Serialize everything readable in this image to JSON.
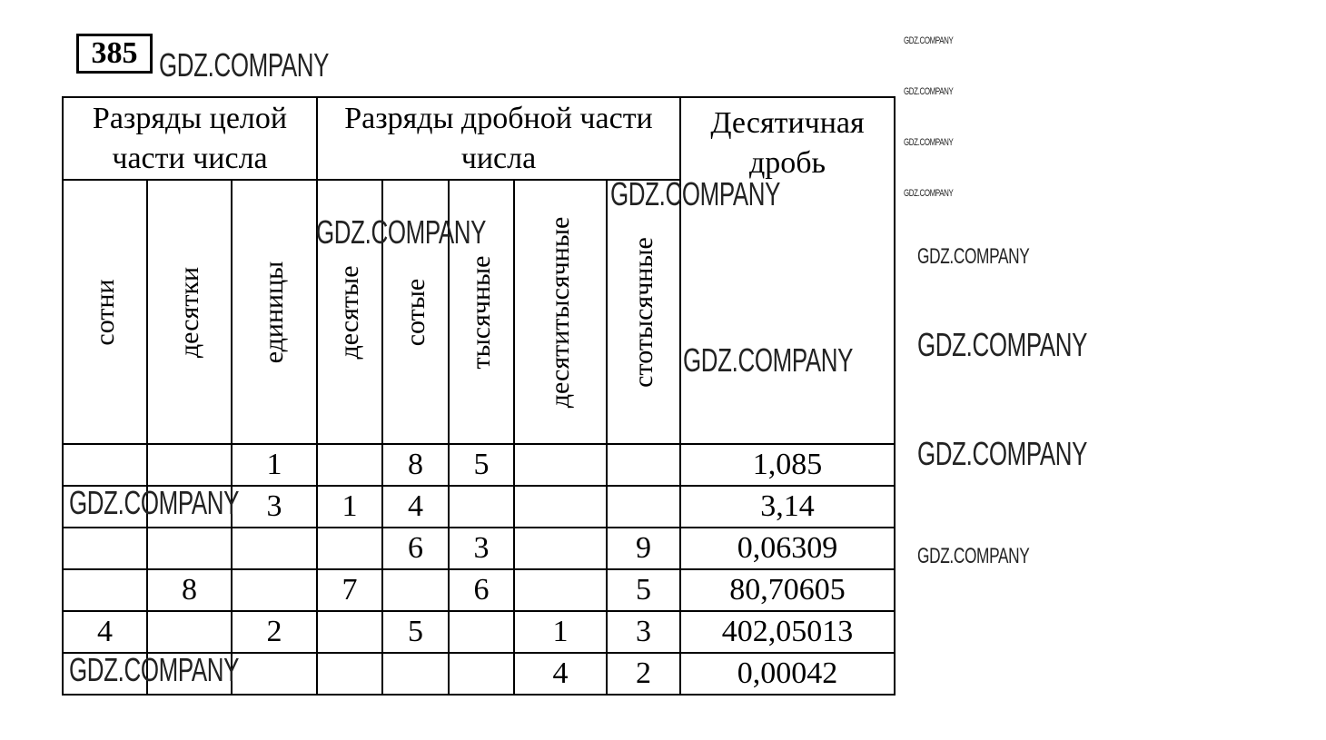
{
  "exercise_number": "385",
  "watermark": "GDZ.COMPANY",
  "header": {
    "group_integer": "Разряды целой части числа",
    "group_fraction": "Разряды дробной части числа",
    "decimal": "Десятичная дробь",
    "columns": [
      "сотни",
      "десятки",
      "единицы",
      "десятые",
      "сотые",
      "тысячные",
      "десятитысячные",
      "стотысячные"
    ]
  },
  "rows": [
    {
      "digits": [
        "",
        "",
        "1",
        "",
        "8",
        "5",
        "",
        ""
      ],
      "value": "1,085"
    },
    {
      "digits": [
        "",
        "",
        "3",
        "1",
        "4",
        "",
        "",
        ""
      ],
      "value": "3,14"
    },
    {
      "digits": [
        "",
        "",
        "",
        "",
        "6",
        "3",
        "",
        "9"
      ],
      "value": "0,06309"
    },
    {
      "digits": [
        "",
        "8",
        "",
        "7",
        "",
        "6",
        "",
        "5"
      ],
      "value": "80,70605"
    },
    {
      "digits": [
        "4",
        "",
        "2",
        "",
        "5",
        "",
        "1",
        "3"
      ],
      "value": "402,05013"
    },
    {
      "digits": [
        "",
        "",
        "",
        "",
        "",
        "",
        "4",
        "2"
      ],
      "value": "0,00042"
    }
  ]
}
